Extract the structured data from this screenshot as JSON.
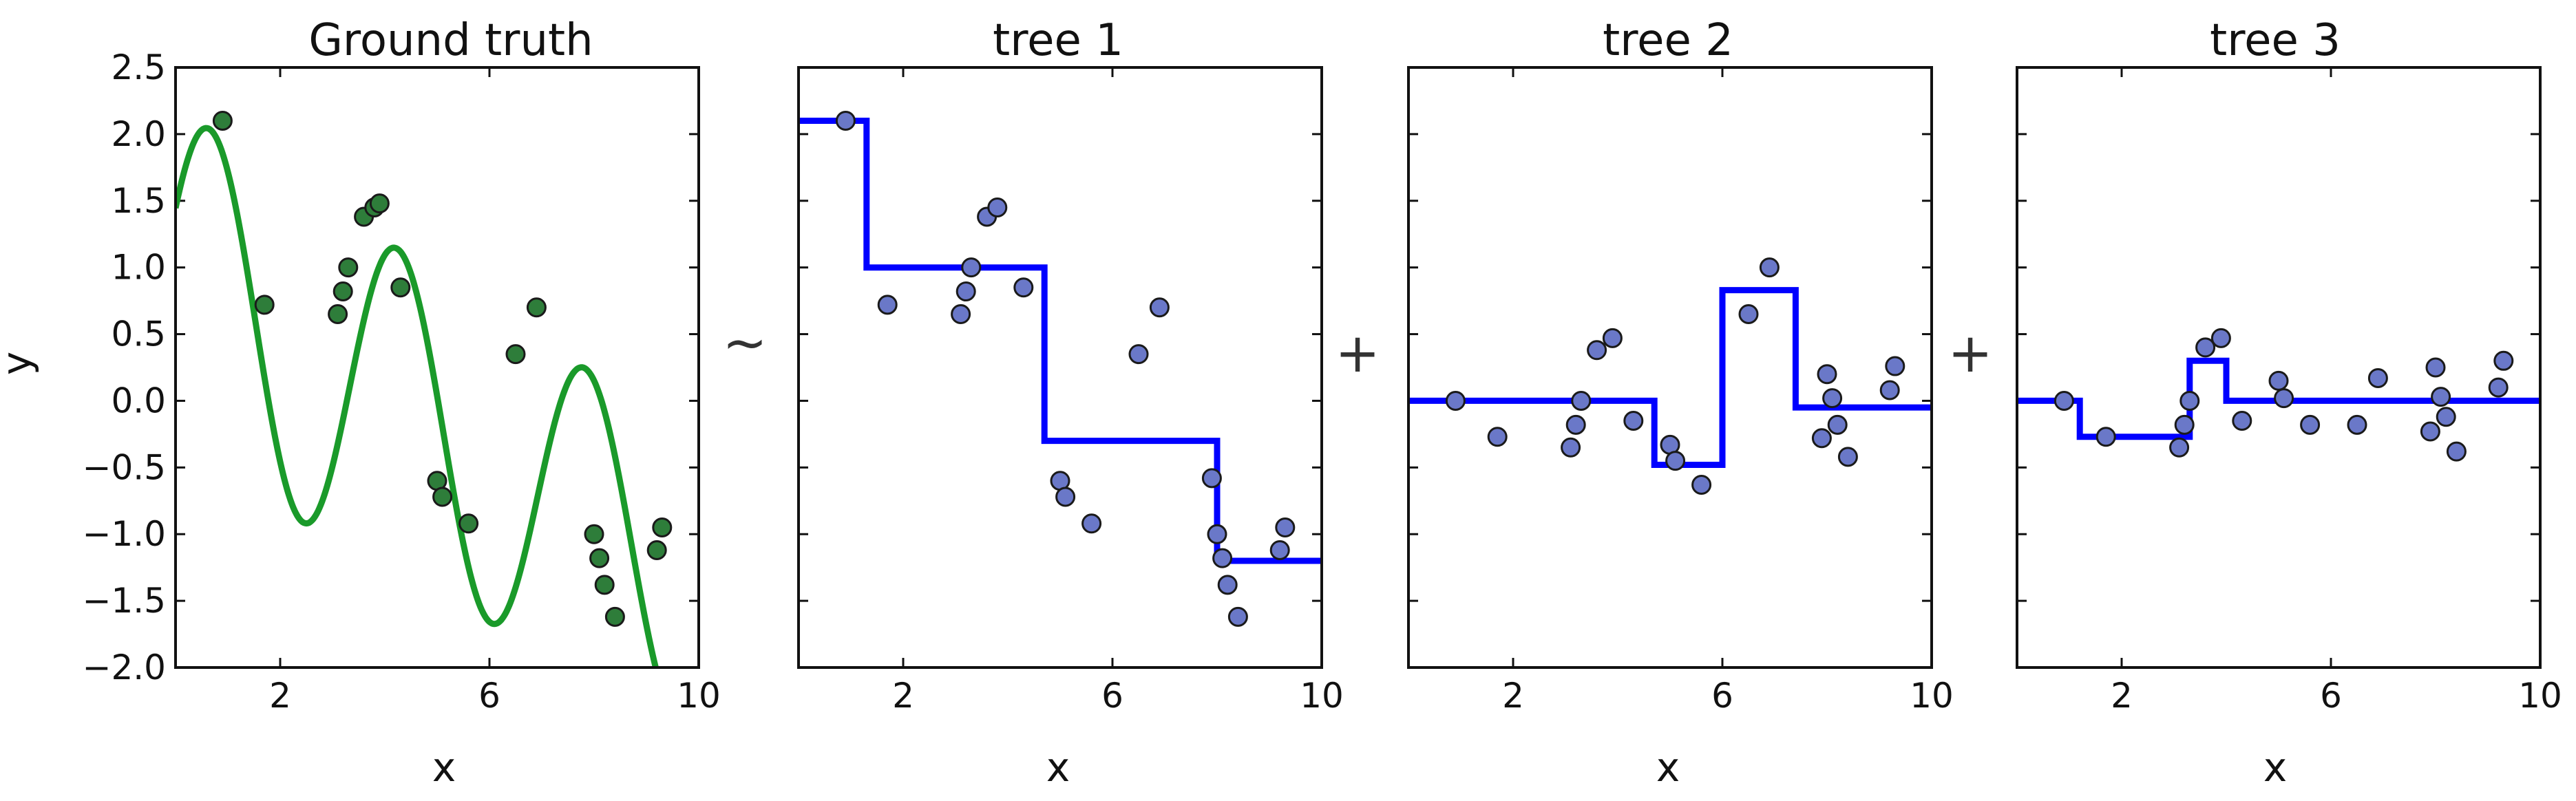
{
  "figure": {
    "operators": [
      "~",
      "+",
      "+"
    ]
  },
  "chart_data": [
    {
      "type": "line+scatter",
      "title": "Ground truth",
      "xlabel": "x",
      "ylabel": "y",
      "xlim": [
        0,
        10
      ],
      "ylim": [
        -2.0,
        2.5
      ],
      "xticks": [
        "2",
        "6",
        "10"
      ],
      "xtick_values": [
        2,
        6,
        10
      ],
      "yticks": [
        "2.5",
        "2.0",
        "1.5",
        "1.0",
        "0.5",
        "0.0",
        "−0.5",
        "−1.0",
        "−1.5",
        "−2.0"
      ],
      "ytick_values": [
        2.5,
        2.0,
        1.5,
        1.0,
        0.5,
        0.0,
        -0.5,
        -1.0,
        -1.5,
        -2.0
      ],
      "line_color": "#1a9a2a",
      "curve": "x*sin(x)/x-like smooth oscillation (ground truth function)",
      "points": [
        [
          0.9,
          2.1
        ],
        [
          1.7,
          0.72
        ],
        [
          3.1,
          0.65
        ],
        [
          3.2,
          0.82
        ],
        [
          3.3,
          1.0
        ],
        [
          3.6,
          1.38
        ],
        [
          3.8,
          1.45
        ],
        [
          3.9,
          1.48
        ],
        [
          4.3,
          0.85
        ],
        [
          5.0,
          -0.6
        ],
        [
          5.1,
          -0.72
        ],
        [
          5.6,
          -0.92
        ],
        [
          6.5,
          0.35
        ],
        [
          6.9,
          0.7
        ],
        [
          8.0,
          -1.0
        ],
        [
          8.1,
          -1.18
        ],
        [
          8.2,
          -1.38
        ],
        [
          8.4,
          -1.62
        ],
        [
          9.2,
          -1.12
        ],
        [
          9.3,
          -0.95
        ]
      ]
    },
    {
      "type": "step+scatter",
      "title": "tree 1",
      "xlabel": "x",
      "xlim": [
        0,
        10
      ],
      "ylim": [
        -2.0,
        2.5
      ],
      "xticks": [
        "2",
        "6",
        "10"
      ],
      "xtick_values": [
        2,
        6,
        10
      ],
      "line_color": "#0000ff",
      "steps": [
        [
          0,
          2.1
        ],
        [
          1.3,
          2.1
        ],
        [
          1.3,
          1.0
        ],
        [
          4.7,
          1.0
        ],
        [
          4.7,
          -0.3
        ],
        [
          8.0,
          -0.3
        ],
        [
          8.0,
          -1.2
        ],
        [
          10,
          -1.2
        ]
      ],
      "points": [
        [
          0.9,
          2.1
        ],
        [
          1.7,
          0.72
        ],
        [
          3.1,
          0.65
        ],
        [
          3.2,
          0.82
        ],
        [
          3.3,
          1.0
        ],
        [
          3.6,
          1.38
        ],
        [
          3.8,
          1.45
        ],
        [
          4.3,
          0.85
        ],
        [
          5.0,
          -0.6
        ],
        [
          5.1,
          -0.72
        ],
        [
          5.6,
          -0.92
        ],
        [
          6.5,
          0.35
        ],
        [
          6.9,
          0.7
        ],
        [
          7.9,
          -0.58
        ],
        [
          8.0,
          -1.0
        ],
        [
          8.1,
          -1.18
        ],
        [
          8.2,
          -1.38
        ],
        [
          8.4,
          -1.62
        ],
        [
          9.2,
          -1.12
        ],
        [
          9.3,
          -0.95
        ]
      ]
    },
    {
      "type": "step+scatter",
      "title": "tree 2",
      "xlabel": "x",
      "xlim": [
        0,
        10
      ],
      "ylim": [
        -2.0,
        2.5
      ],
      "xticks": [
        "2",
        "6",
        "10"
      ],
      "xtick_values": [
        2,
        6,
        10
      ],
      "line_color": "#0000ff",
      "steps": [
        [
          0,
          0.0
        ],
        [
          4.7,
          0.0
        ],
        [
          4.7,
          -0.48
        ],
        [
          6.0,
          -0.48
        ],
        [
          6.0,
          0.83
        ],
        [
          7.4,
          0.83
        ],
        [
          7.4,
          -0.05
        ],
        [
          10,
          -0.05
        ]
      ],
      "points": [
        [
          0.9,
          0.0
        ],
        [
          1.7,
          -0.27
        ],
        [
          3.1,
          -0.35
        ],
        [
          3.2,
          -0.18
        ],
        [
          3.3,
          0.0
        ],
        [
          3.6,
          0.38
        ],
        [
          3.9,
          0.47
        ],
        [
          4.3,
          -0.15
        ],
        [
          5.0,
          -0.33
        ],
        [
          5.1,
          -0.45
        ],
        [
          5.6,
          -0.63
        ],
        [
          6.5,
          0.65
        ],
        [
          6.9,
          1.0
        ],
        [
          7.9,
          -0.28
        ],
        [
          8.0,
          0.2
        ],
        [
          8.1,
          0.02
        ],
        [
          8.2,
          -0.18
        ],
        [
          8.4,
          -0.42
        ],
        [
          9.2,
          0.08
        ],
        [
          9.3,
          0.26
        ]
      ]
    },
    {
      "type": "step+scatter",
      "title": "tree 3",
      "xlabel": "x",
      "xlim": [
        0,
        10
      ],
      "ylim": [
        -2.0,
        2.5
      ],
      "xticks": [
        "2",
        "6",
        "10"
      ],
      "xtick_values": [
        2,
        6,
        10
      ],
      "line_color": "#0000ff",
      "steps": [
        [
          0,
          0.0
        ],
        [
          1.2,
          0.0
        ],
        [
          1.2,
          -0.27
        ],
        [
          3.3,
          -0.27
        ],
        [
          3.3,
          0.3
        ],
        [
          4.0,
          0.3
        ],
        [
          4.0,
          0.0
        ],
        [
          10,
          0.0
        ]
      ],
      "points": [
        [
          0.9,
          0.0
        ],
        [
          1.7,
          -0.27
        ],
        [
          3.1,
          -0.35
        ],
        [
          3.2,
          -0.18
        ],
        [
          3.3,
          0.0
        ],
        [
          3.6,
          0.4
        ],
        [
          3.9,
          0.47
        ],
        [
          4.3,
          -0.15
        ],
        [
          5.0,
          0.15
        ],
        [
          5.1,
          0.02
        ],
        [
          5.6,
          -0.18
        ],
        [
          6.5,
          -0.18
        ],
        [
          6.9,
          0.17
        ],
        [
          7.9,
          -0.23
        ],
        [
          8.0,
          0.25
        ],
        [
          8.1,
          0.03
        ],
        [
          8.2,
          -0.12
        ],
        [
          8.4,
          -0.38
        ],
        [
          9.2,
          0.1
        ],
        [
          9.3,
          0.3
        ]
      ]
    }
  ]
}
